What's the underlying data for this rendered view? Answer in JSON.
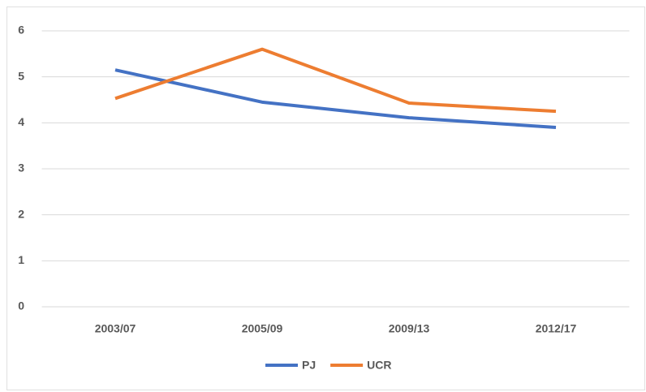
{
  "chart_data": {
    "type": "line",
    "categories": [
      "2003/07",
      "2005/09",
      "2009/13",
      "2012/17"
    ],
    "series": [
      {
        "name": "PJ",
        "color": "#4472c4",
        "values": [
          5.15,
          4.45,
          4.11,
          3.9
        ]
      },
      {
        "name": "UCR",
        "color": "#ed7d31",
        "values": [
          4.53,
          5.6,
          4.43,
          4.25
        ]
      }
    ],
    "ylim": [
      0,
      6
    ],
    "yticks": [
      0,
      1,
      2,
      3,
      4,
      5,
      6
    ],
    "grid": true,
    "legend": "bottom"
  }
}
